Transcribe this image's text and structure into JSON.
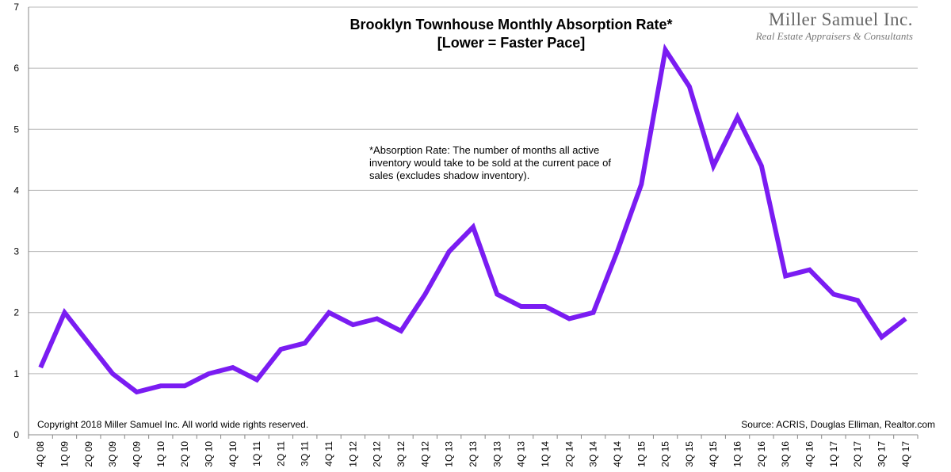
{
  "chart_data": {
    "type": "line",
    "title": "Brooklyn Townhouse Monthly Absorption Rate*",
    "subtitle": "[Lower = Faster Pace]",
    "xlabel": "",
    "ylabel": "",
    "ylim": [
      0,
      7
    ],
    "yticks": [
      "0",
      "1",
      "2",
      "3",
      "4",
      "5",
      "6",
      "7"
    ],
    "grid": true,
    "color": "#7a1cf2",
    "categories": [
      "4Q 08",
      "1Q 09",
      "2Q 09",
      "3Q 09",
      "4Q 09",
      "1Q 10",
      "2Q 10",
      "3Q 10",
      "4Q 10",
      "1Q 11",
      "2Q 11",
      "3Q 11",
      "4Q 11",
      "1Q 12",
      "2Q 12",
      "3Q 12",
      "4Q 12",
      "1Q 13",
      "2Q 13",
      "3Q 13",
      "4Q 13",
      "1Q 14",
      "2Q 14",
      "3Q 14",
      "4Q 14",
      "1Q 15",
      "2Q 15",
      "3Q 15",
      "4Q 15",
      "1Q 16",
      "2Q 16",
      "3Q 16",
      "4Q 16",
      "1Q 17",
      "2Q 17",
      "3Q 17",
      "4Q 17"
    ],
    "values": [
      1.1,
      2.0,
      1.5,
      1.0,
      0.7,
      0.8,
      0.8,
      1.0,
      1.1,
      0.9,
      1.4,
      1.5,
      2.0,
      1.8,
      1.9,
      1.7,
      2.3,
      3.0,
      3.4,
      2.3,
      2.1,
      2.1,
      1.9,
      2.0,
      3.0,
      4.1,
      6.3,
      5.7,
      4.4,
      5.2,
      4.4,
      2.6,
      2.7,
      2.3,
      2.2,
      1.6,
      1.9
    ],
    "annotation": "*Absorption Rate: The number of months all active inventory would take to be sold at the current pace of sales (excludes shadow inventory).",
    "copyright": "Copyright 2018 Miller Samuel Inc.  All world wide rights reserved.",
    "source": "Source: ACRIS, Douglas Elliman, Realtor.com"
  },
  "brand": {
    "name": "Miller Samuel Inc.",
    "tagline": "Real Estate Appraisers & Consultants"
  }
}
